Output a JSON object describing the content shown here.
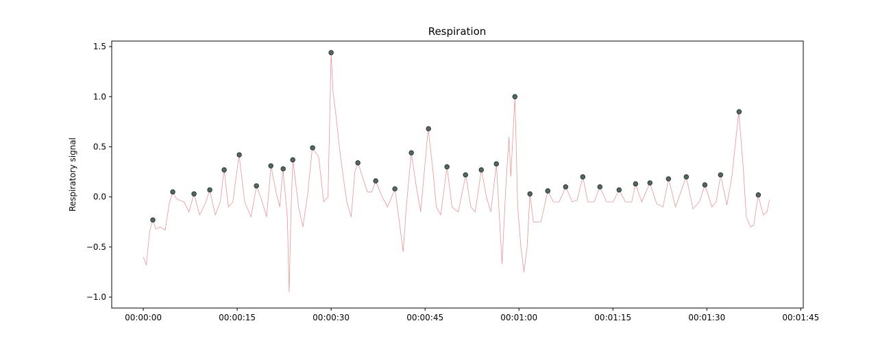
{
  "chart_data": {
    "type": "line",
    "title": "Respiration",
    "ylabel": "Respiratory signal",
    "xlim": [
      -5.04,
      105.4
    ],
    "ylim": [
      -1.109,
      1.555
    ],
    "xticks": [
      {
        "value": 0,
        "label": "00:00:00"
      },
      {
        "value": 15,
        "label": "00:00:15"
      },
      {
        "value": 30,
        "label": "00:00:30"
      },
      {
        "value": 45,
        "label": "00:00:45"
      },
      {
        "value": 60,
        "label": "00:01:00"
      },
      {
        "value": 75,
        "label": "00:01:15"
      },
      {
        "value": 90,
        "label": "00:01:30"
      },
      {
        "value": 105,
        "label": "00:01:45"
      }
    ],
    "yticks": [
      {
        "value": -1.0,
        "label": "−1.0"
      },
      {
        "value": -0.5,
        "label": "−0.5"
      },
      {
        "value": 0,
        "label": "0.0"
      },
      0.5,
      {
        "value": 1.0,
        "label": "1.0"
      },
      1.5
    ],
    "series": [
      {
        "type": "line",
        "color": "#e07b7b",
        "x": [
          0,
          0.5,
          1,
          1.5,
          2,
          2.7,
          3.5,
          4.2,
          4.7,
          5.3,
          6.5,
          7.3,
          8.1,
          9,
          10,
          10.6,
          11.5,
          12.3,
          12.9,
          13.6,
          14.3,
          15.3,
          16.2,
          17.2,
          18.1,
          19,
          19.7,
          20.4,
          21.2,
          21.8,
          22.3,
          23,
          23.3,
          23.6,
          23.9,
          24.8,
          25.5,
          26.3,
          27,
          28,
          28.8,
          29.5,
          30,
          30.3,
          30.8,
          31.5,
          32.5,
          33.2,
          33.8,
          34.3,
          35,
          35.8,
          36.5,
          37.1,
          38,
          39,
          40.2,
          41,
          41.5,
          42,
          42.8,
          43.6,
          44.3,
          45.5,
          46.2,
          46.8,
          47.5,
          48.5,
          49.3,
          50.3,
          51.5,
          52.3,
          53,
          54,
          54.8,
          55.5,
          56.4,
          57.3,
          57.9,
          58.4,
          58.7,
          59.35,
          59.8,
          60.3,
          60.8,
          61.3,
          61.75,
          62.3,
          63.5,
          64.6,
          65.5,
          66.4,
          67.5,
          68.5,
          69.3,
          70.2,
          71,
          72,
          72.9,
          74,
          75,
          76,
          77,
          78,
          78.6,
          79.6,
          80.9,
          82,
          83,
          83.9,
          85,
          86.7,
          87.8,
          88.8,
          89.7,
          90.8,
          91.5,
          92.2,
          93.2,
          94,
          95.1,
          95.8,
          96.3,
          97,
          97.5,
          98.2,
          99,
          99.6,
          100
        ],
        "values": [
          -0.6,
          -0.68,
          -0.35,
          -0.23,
          -0.32,
          -0.3,
          -0.33,
          -0.05,
          0.05,
          -0.02,
          -0.05,
          -0.15,
          0.03,
          -0.18,
          -0.05,
          0.07,
          -0.18,
          -0.05,
          0.27,
          -0.1,
          -0.05,
          0.42,
          -0.05,
          -0.2,
          0.11,
          -0.05,
          -0.2,
          0.31,
          0.05,
          -0.1,
          0.28,
          -0.2,
          -0.95,
          -0.1,
          0.37,
          -0.1,
          -0.3,
          0.05,
          0.49,
          0.4,
          -0.05,
          0,
          1.44,
          1.05,
          0.8,
          0.4,
          -0.05,
          -0.2,
          0.25,
          0.34,
          0.2,
          0.05,
          0.05,
          0.16,
          0.02,
          -0.1,
          0.08,
          -0.3,
          -0.55,
          -0.1,
          0.44,
          0.1,
          -0.15,
          0.68,
          0.3,
          -0.1,
          -0.18,
          0.3,
          -0.1,
          -0.15,
          0.22,
          -0.1,
          -0.15,
          0.27,
          0,
          -0.15,
          0.33,
          -0.67,
          0.1,
          0.6,
          0.2,
          1.0,
          -0.1,
          -0.5,
          -0.75,
          -0.5,
          0.03,
          -0.25,
          -0.25,
          0.06,
          -0.05,
          -0.05,
          0.1,
          -0.05,
          -0.03,
          0.2,
          -0.05,
          -0.05,
          0.1,
          -0.05,
          -0.05,
          0.07,
          -0.05,
          -0.05,
          0.13,
          -0.05,
          0.14,
          -0.07,
          -0.1,
          0.18,
          -0.1,
          0.2,
          -0.12,
          -0.05,
          0.12,
          -0.1,
          -0.05,
          0.22,
          -0.08,
          0.2,
          0.85,
          0.3,
          -0.2,
          -0.3,
          -0.28,
          0.02,
          -0.18,
          -0.15,
          -0.03
        ]
      },
      {
        "type": "scatter",
        "color": "#4f6b60",
        "x": [
          1.53,
          4.71,
          8.1,
          10.62,
          12.92,
          15.33,
          18.07,
          20.37,
          22.34,
          23.87,
          27.04,
          30.0,
          34.27,
          37.12,
          40.18,
          42.81,
          45.55,
          48.5,
          51.46,
          53.98,
          56.39,
          59.35,
          61.75,
          64.6,
          67.45,
          70.19,
          72.92,
          75.99,
          78.62,
          80.91,
          83.87,
          86.72,
          89.68,
          92.19,
          95.15,
          98.22
        ],
        "values": [
          -0.23,
          0.05,
          0.03,
          0.07,
          0.27,
          0.42,
          0.11,
          0.31,
          0.28,
          0.37,
          0.49,
          1.44,
          0.34,
          0.16,
          0.08,
          0.44,
          0.68,
          0.3,
          0.22,
          0.27,
          0.33,
          1.0,
          0.03,
          0.06,
          0.1,
          0.2,
          0.1,
          0.07,
          0.13,
          0.14,
          0.18,
          0.2,
          0.12,
          0.22,
          0.85,
          0.02
        ]
      }
    ]
  }
}
